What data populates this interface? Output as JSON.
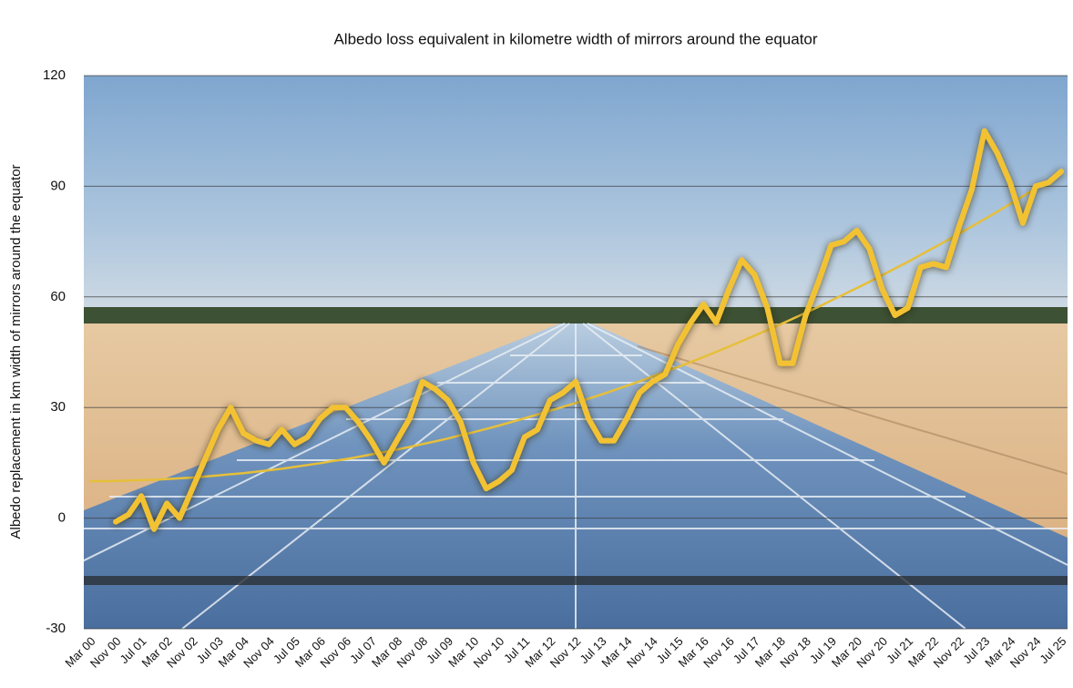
{
  "chart_data": {
    "type": "line",
    "title": "Albedo loss equivalent in kilometre width of mirrors around the equator",
    "y_label": "Albedo replacement in km width of mirrors around the equator",
    "categories": [
      "Mar 00",
      null,
      "Nov 00",
      null,
      "Jul 01",
      null,
      "Mar 02",
      null,
      "Nov 02",
      null,
      "Jul 03",
      null,
      "Mar 04",
      null,
      "Nov 04",
      null,
      "Jul 05",
      null,
      "Mar 06",
      null,
      "Nov 06",
      null,
      "Jul 07",
      null,
      "Mar 08",
      null,
      "Nov 08",
      null,
      "Jul 09",
      null,
      "Mar 10",
      null,
      "Nov 10",
      null,
      "Jul 11",
      null,
      "Mar 12",
      null,
      "Nov 12",
      null,
      "Jul 13",
      null,
      "Mar 14",
      null,
      "Nov 14",
      null,
      "Jul 15",
      null,
      "Mar 16",
      null,
      "Nov 16",
      null,
      "Jul 17",
      null,
      "Mar 18",
      null,
      "Nov 18",
      null,
      "Jul 19",
      null,
      "Mar 20",
      null,
      "Nov 20",
      null,
      "Jul 21",
      null,
      "Mar 22",
      null,
      "Nov 22",
      null,
      "Jul 23",
      null,
      "Mar 24",
      null,
      "Nov 24",
      null,
      "Jul 25"
    ],
    "series": [
      {
        "color": "#f2c232",
        "width": 6,
        "glow": true,
        "values": [
          null,
          null,
          -1,
          1,
          6,
          -3,
          4,
          0,
          8,
          16,
          24,
          30,
          23,
          21,
          20,
          24,
          20,
          22,
          27,
          30,
          30,
          26,
          21,
          15,
          21,
          27,
          37,
          35,
          32,
          26,
          15,
          8,
          10,
          13,
          22,
          24,
          32,
          34,
          37,
          27,
          21,
          21,
          27,
          34,
          37,
          39,
          47,
          53,
          58,
          53,
          62,
          70,
          66,
          57,
          42,
          42,
          55,
          64,
          74,
          75,
          78,
          73,
          62,
          55,
          57,
          68,
          69,
          68,
          79,
          89,
          105,
          99,
          91,
          80,
          90,
          91,
          94
        ]
      },
      {
        "color": "#e6bf3a",
        "width": 2.5,
        "glow": false,
        "values": [
          10.0,
          10.0,
          10.1,
          10.2,
          10.3,
          10.4,
          10.6,
          10.8,
          11.0,
          11.3,
          11.6,
          11.9,
          12.2,
          12.6,
          13.0,
          13.4,
          13.9,
          14.4,
          14.9,
          15.5,
          16.0,
          16.6,
          17.3,
          17.9,
          18.6,
          19.3,
          20.1,
          20.8,
          21.6,
          22.5,
          23.3,
          24.2,
          25.1,
          26.1,
          27.1,
          28.1,
          29.1,
          30.2,
          31.2,
          32.4,
          33.5,
          34.7,
          35.9,
          37.1,
          38.4,
          39.7,
          41.0,
          42.3,
          43.7,
          45.1,
          46.5,
          48.0,
          49.5,
          51.0,
          52.5,
          54.1,
          55.7,
          57.3,
          59.0,
          60.7,
          62.4,
          64.1,
          65.9,
          67.7,
          69.5,
          71.4,
          73.3,
          75.2,
          77.1,
          79.1,
          81.1,
          83.1,
          85.2,
          87.3,
          89.4,
          91.5,
          93.7
        ]
      }
    ],
    "ylim": [
      -30,
      120
    ],
    "yticks": [
      -30,
      0,
      30,
      60,
      90,
      120
    ],
    "grid": true
  }
}
